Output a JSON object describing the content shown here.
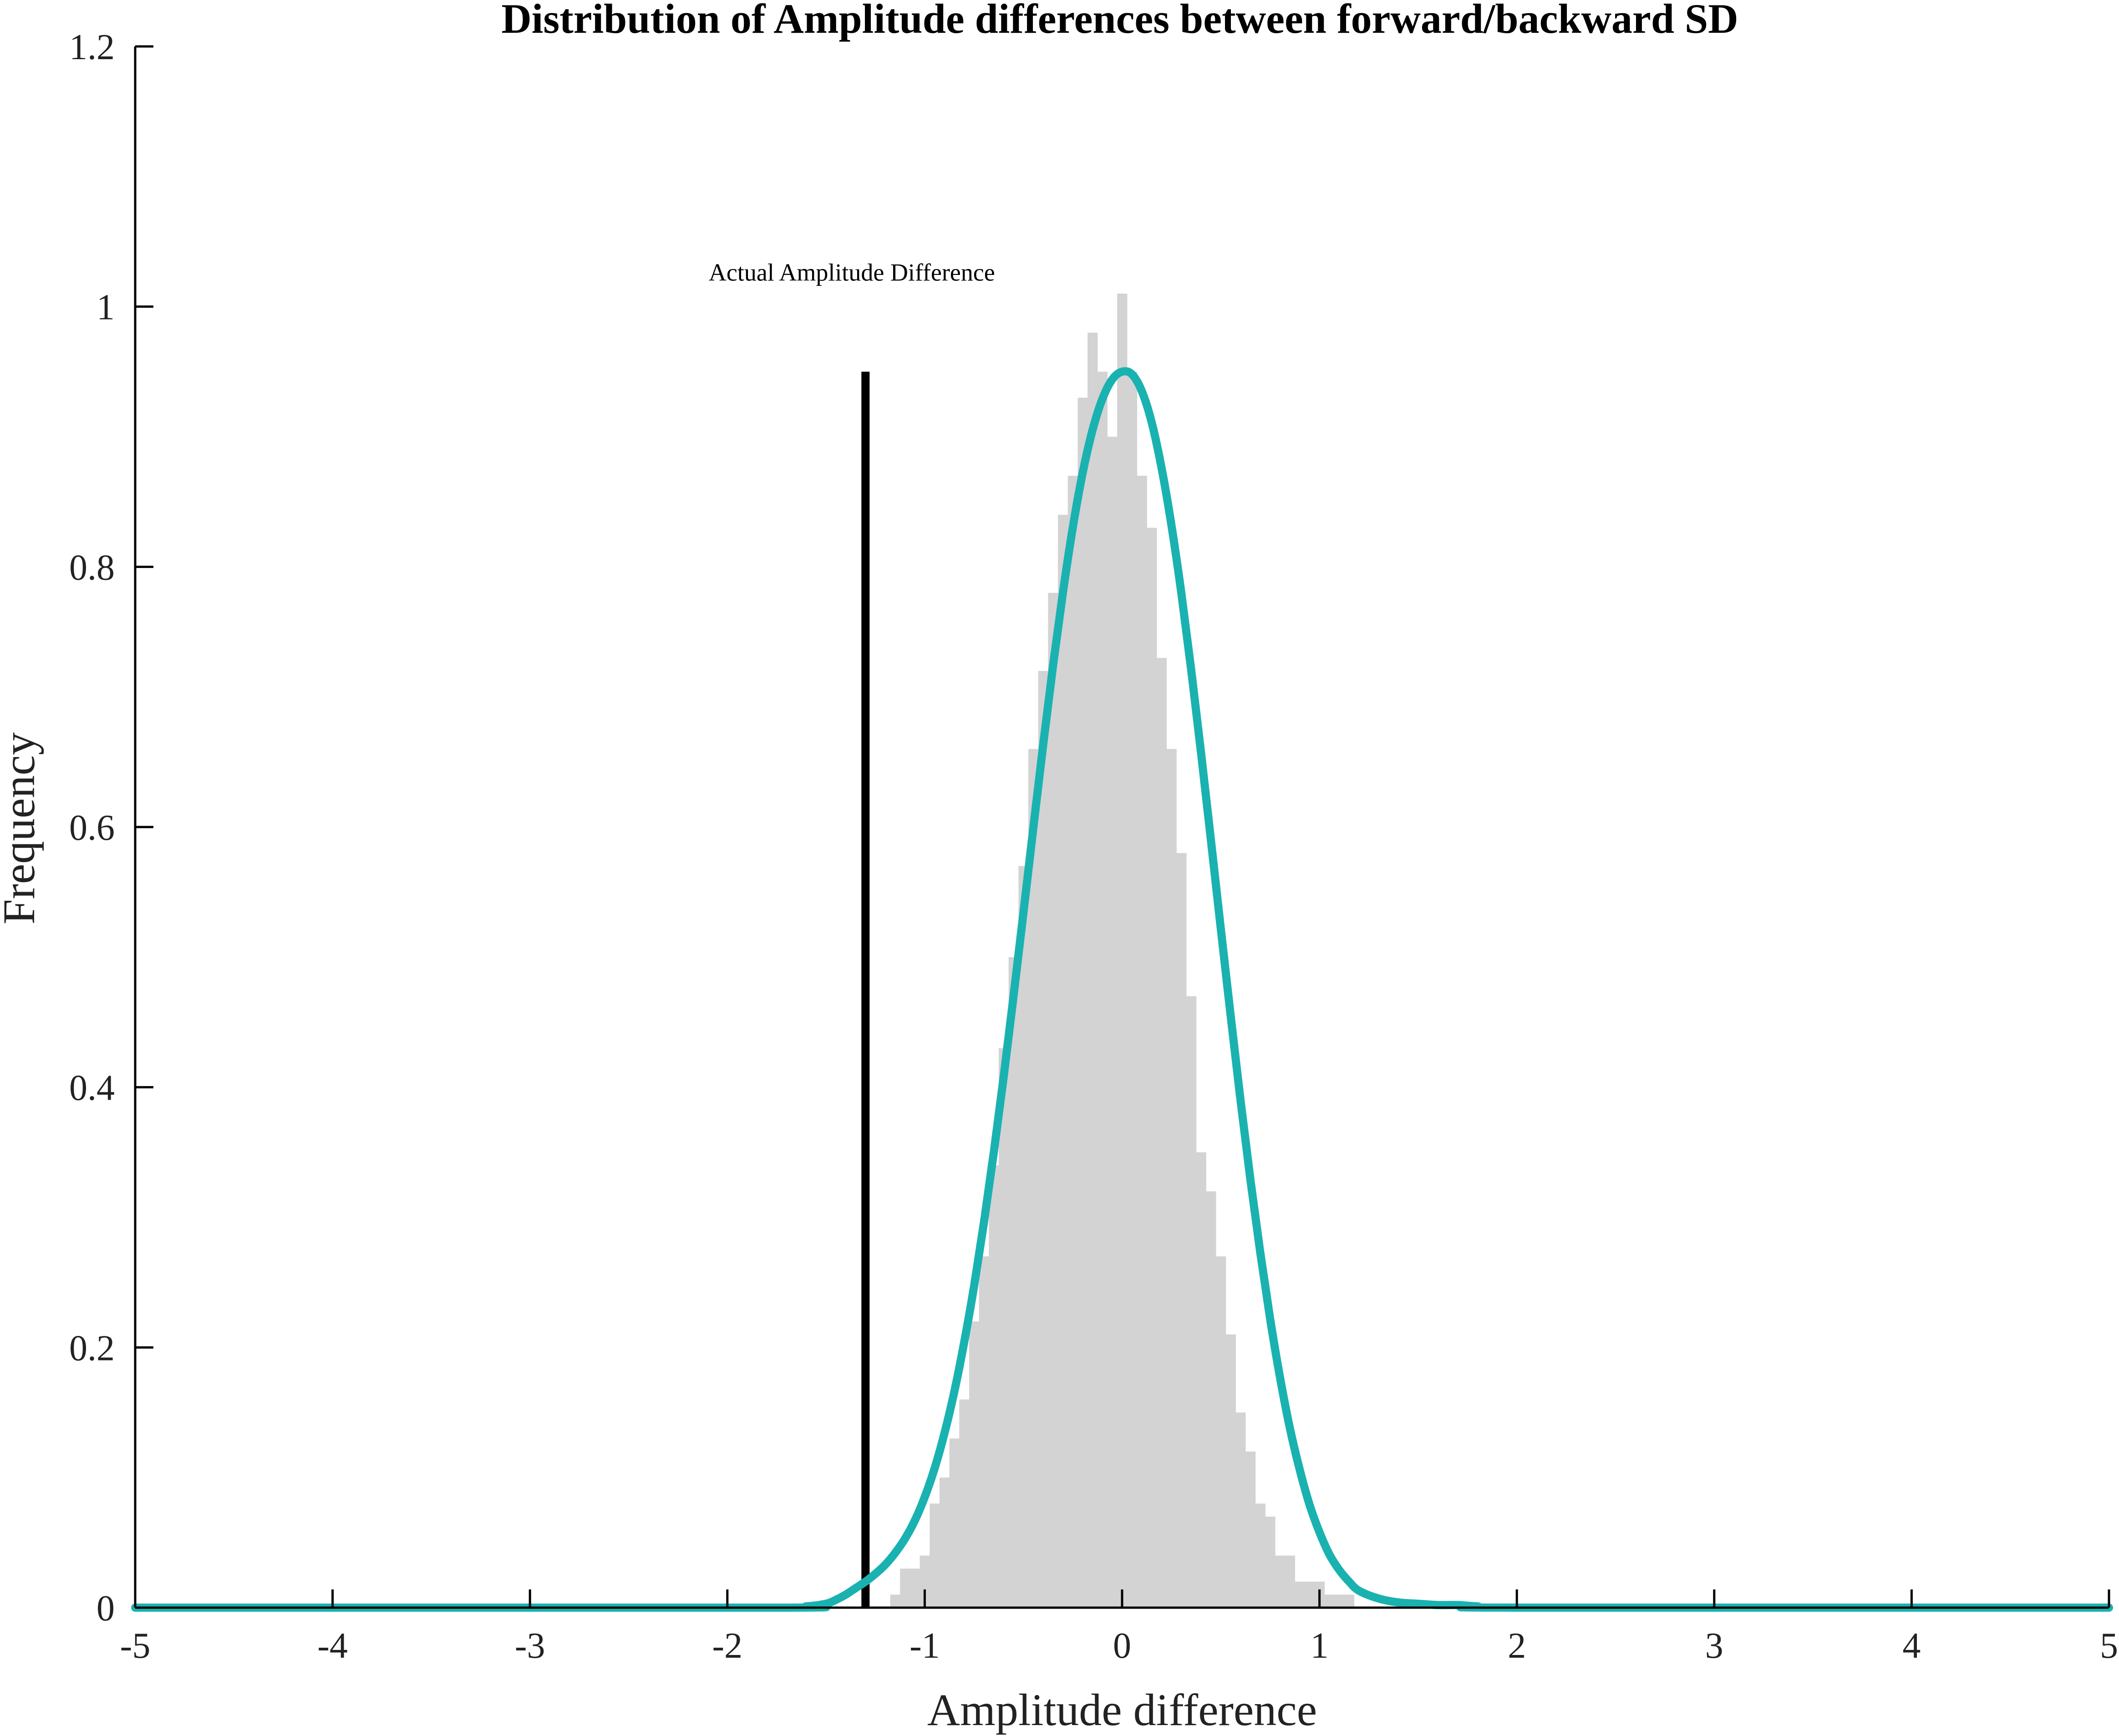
{
  "chart_data": {
    "type": "bar",
    "title": "Distribution of Amplitude differences between forward/backward SD",
    "xlabel": "Amplitude difference",
    "ylabel": "Frequency",
    "xlim": [
      -5,
      5
    ],
    "ylim": [
      0,
      1.2
    ],
    "xticks": [
      "-5",
      "-4",
      "-3",
      "-2",
      "-1",
      "0",
      "1",
      "2",
      "3",
      "4",
      "5"
    ],
    "yticks": [
      "0",
      "0.2",
      "0.4",
      "0.6",
      "0.8",
      "1",
      "1.2"
    ],
    "grid": false,
    "histogram": {
      "bin_width": 0.05,
      "bin_centers": [
        -1.15,
        -1.1,
        -1.05,
        -1.0,
        -0.95,
        -0.9,
        -0.85,
        -0.8,
        -0.75,
        -0.7,
        -0.65,
        -0.6,
        -0.55,
        -0.5,
        -0.45,
        -0.4,
        -0.35,
        -0.3,
        -0.25,
        -0.2,
        -0.15,
        -0.1,
        -0.05,
        0.0,
        0.05,
        0.1,
        0.15,
        0.2,
        0.25,
        0.3,
        0.35,
        0.4,
        0.45,
        0.5,
        0.55,
        0.6,
        0.65,
        0.7,
        0.75,
        0.8,
        0.85,
        0.9,
        0.95,
        1.0,
        1.05,
        1.1,
        1.15
      ],
      "values": [
        0.01,
        0.03,
        0.03,
        0.04,
        0.08,
        0.1,
        0.13,
        0.16,
        0.22,
        0.27,
        0.34,
        0.43,
        0.5,
        0.57,
        0.66,
        0.72,
        0.78,
        0.84,
        0.87,
        0.93,
        0.98,
        0.95,
        0.9,
        1.01,
        0.95,
        0.87,
        0.83,
        0.73,
        0.66,
        0.58,
        0.47,
        0.35,
        0.32,
        0.27,
        0.21,
        0.15,
        0.12,
        0.08,
        0.07,
        0.04,
        0.04,
        0.02,
        0.02,
        0.02,
        0.01,
        0.01,
        0.01
      ],
      "color": "#d3d3d3"
    },
    "density_curve": {
      "color": "#1ab2b0",
      "x": [
        -5.0,
        -1.8,
        -1.6,
        -1.5,
        -1.45,
        -1.4,
        -1.35,
        -1.3,
        -1.25,
        -1.2,
        -1.15,
        -1.1,
        -1.05,
        -1.0,
        -0.95,
        -0.9,
        -0.85,
        -0.8,
        -0.75,
        -0.7,
        -0.65,
        -0.6,
        -0.55,
        -0.5,
        -0.45,
        -0.4,
        -0.35,
        -0.3,
        -0.25,
        -0.2,
        -0.15,
        -0.1,
        -0.05,
        0.0,
        0.05,
        0.1,
        0.15,
        0.2,
        0.25,
        0.3,
        0.35,
        0.4,
        0.45,
        0.5,
        0.55,
        0.6,
        0.65,
        0.7,
        0.75,
        0.8,
        0.85,
        0.9,
        0.95,
        1.0,
        1.05,
        1.1,
        1.15,
        1.2,
        1.3,
        1.4,
        1.5,
        1.6,
        1.7,
        1.8,
        2.0,
        5.0
      ],
      "y": [
        0.0,
        0.0,
        0.001,
        0.003,
        0.006,
        0.01,
        0.015,
        0.02,
        0.026,
        0.033,
        0.042,
        0.053,
        0.067,
        0.085,
        0.107,
        0.134,
        0.166,
        0.204,
        0.247,
        0.296,
        0.35,
        0.408,
        0.47,
        0.534,
        0.599,
        0.663,
        0.724,
        0.78,
        0.83,
        0.872,
        0.905,
        0.929,
        0.944,
        0.95,
        0.948,
        0.935,
        0.911,
        0.876,
        0.832,
        0.78,
        0.721,
        0.657,
        0.59,
        0.522,
        0.455,
        0.39,
        0.329,
        0.273,
        0.222,
        0.177,
        0.138,
        0.106,
        0.079,
        0.058,
        0.041,
        0.029,
        0.02,
        0.013,
        0.007,
        0.004,
        0.003,
        0.002,
        0.002,
        0.001,
        0.0,
        0.0
      ]
    },
    "reference_line": {
      "x": -1.3,
      "y_top": 0.95,
      "label": "Actual Amplitude Difference",
      "label_x": -1.3,
      "label_y": 1.02,
      "color": "#000000"
    }
  }
}
